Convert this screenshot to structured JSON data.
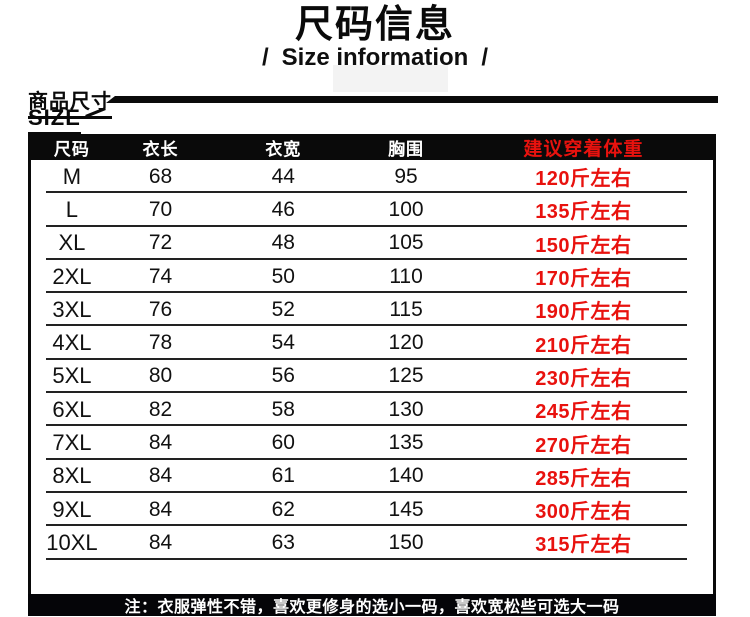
{
  "header": {
    "title": "尺码信息",
    "subtitle": "Size information",
    "slash_left": "/",
    "slash_right": "/"
  },
  "section": {
    "label_cn": "商品尺寸",
    "label_en": "SIZE"
  },
  "size_table": {
    "headers": [
      "尺码",
      "衣长",
      "衣宽",
      "胸围",
      "建议穿着体重"
    ],
    "rows": [
      [
        "M",
        "68",
        "44",
        "95",
        "120斤左右"
      ],
      [
        "L",
        "70",
        "46",
        "100",
        "135斤左右"
      ],
      [
        "XL",
        "72",
        "48",
        "105",
        "150斤左右"
      ],
      [
        "2XL",
        "74",
        "50",
        "110",
        "170斤左右"
      ],
      [
        "3XL",
        "76",
        "52",
        "115",
        "190斤左右"
      ],
      [
        "4XL",
        "78",
        "54",
        "120",
        "210斤左右"
      ],
      [
        "5XL",
        "80",
        "56",
        "125",
        "230斤左右"
      ],
      [
        "6XL",
        "82",
        "58",
        "130",
        "245斤左右"
      ],
      [
        "7XL",
        "84",
        "60",
        "135",
        "270斤左右"
      ],
      [
        "8XL",
        "84",
        "61",
        "140",
        "285斤左右"
      ],
      [
        "9XL",
        "84",
        "62",
        "145",
        "300斤左右"
      ],
      [
        "10XL",
        "84",
        "63",
        "150",
        "315斤左右"
      ]
    ]
  },
  "note": "注：衣服弹性不错，喜欢更修身的选小一码，喜欢宽松些可选大一码",
  "colors": {
    "accent_red": "#e8120e",
    "band_black": "#0a0a0a"
  }
}
